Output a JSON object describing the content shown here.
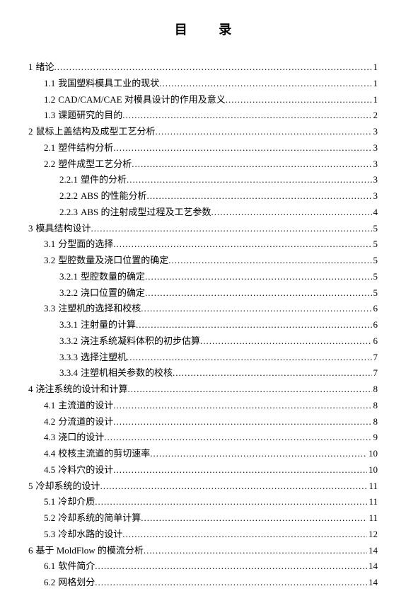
{
  "title": "目  录",
  "entries": [
    {
      "level": 1,
      "num": "1",
      "label": "绪论",
      "page": "1"
    },
    {
      "level": 2,
      "num": "1.1",
      "label": "我国塑料模具工业的现状",
      "page": "1"
    },
    {
      "level": 2,
      "num": "1.2",
      "label": "CAD/CAM/CAE 对模具设计的作用及意义",
      "page": "1"
    },
    {
      "level": 2,
      "num": "1.3",
      "label": "课题研究的目的",
      "page": "2"
    },
    {
      "level": 1,
      "num": "2",
      "label": "鼠标上盖结构及成型工艺分析",
      "page": "3"
    },
    {
      "level": 2,
      "num": "2.1",
      "label": "塑件结构分析",
      "page": "3"
    },
    {
      "level": 2,
      "num": "2.2",
      "label": "塑件成型工艺分析",
      "page": "3"
    },
    {
      "level": 3,
      "num": "2.2.1",
      "label": "塑件的分析",
      "page": "3"
    },
    {
      "level": 3,
      "num": "2.2.2",
      "label": "ABS 的性能分析",
      "page": "3"
    },
    {
      "level": 3,
      "num": "2.2.3",
      "label": "ABS 的注射成型过程及工艺参数",
      "page": "4"
    },
    {
      "level": 1,
      "num": "3",
      "label": "模具结构设计",
      "page": "5"
    },
    {
      "level": 2,
      "num": "3.1",
      "label": "分型面的选择",
      "page": "5"
    },
    {
      "level": 2,
      "num": "3.2",
      "label": "型腔数量及浇口位置的确定",
      "page": "5"
    },
    {
      "level": 3,
      "num": "3.2.1",
      "label": "型腔数量的确定",
      "page": "5"
    },
    {
      "level": 3,
      "num": "3.2.2",
      "label": "浇口位置的确定",
      "page": "5"
    },
    {
      "level": 2,
      "num": "3.3",
      "label": "注塑机的选择和校核",
      "page": "6"
    },
    {
      "level": 3,
      "num": "3.3.1",
      "label": "注射量的计算",
      "page": "6"
    },
    {
      "level": 3,
      "num": "3.3.2",
      "label": "浇注系统凝料体积的初步估算",
      "page": "6"
    },
    {
      "level": 3,
      "num": "3.3.3",
      "label": "选择注塑机",
      "page": "7"
    },
    {
      "level": 3,
      "num": "3.3.4",
      "label": "注塑机相关参数的校核",
      "page": "7"
    },
    {
      "level": 1,
      "num": "4",
      "label": "浇注系统的设计和计算",
      "page": "8"
    },
    {
      "level": 2,
      "num": "4.1",
      "label": "主流道的设计",
      "page": "8"
    },
    {
      "level": 2,
      "num": "4.2",
      "label": "分流道的设计",
      "page": "8"
    },
    {
      "level": 2,
      "num": "4.3",
      "label": "浇口的设计",
      "page": "9"
    },
    {
      "level": 2,
      "num": "4.4",
      "label": "校核主流道的剪切速率",
      "page": "10"
    },
    {
      "level": 2,
      "num": "4.5",
      "label": "冷料穴的设计",
      "page": "10"
    },
    {
      "level": 1,
      "num": "5",
      "label": "冷却系统的设计",
      "page": "11"
    },
    {
      "level": 2,
      "num": "5.1",
      "label": "冷却介质",
      "page": "11"
    },
    {
      "level": 2,
      "num": "5.2",
      "label": "冷却系统的简单计算",
      "page": "11"
    },
    {
      "level": 2,
      "num": "5.3",
      "label": "冷却水路的设计",
      "page": "12"
    },
    {
      "level": 1,
      "num": "6",
      "label": "基于 MoldFlow 的模流分析",
      "page": "14"
    },
    {
      "level": 2,
      "num": "6.1",
      "label": "软件简介",
      "page": "14"
    },
    {
      "level": 2,
      "num": "6.2",
      "label": "网格划分",
      "page": "14"
    }
  ]
}
